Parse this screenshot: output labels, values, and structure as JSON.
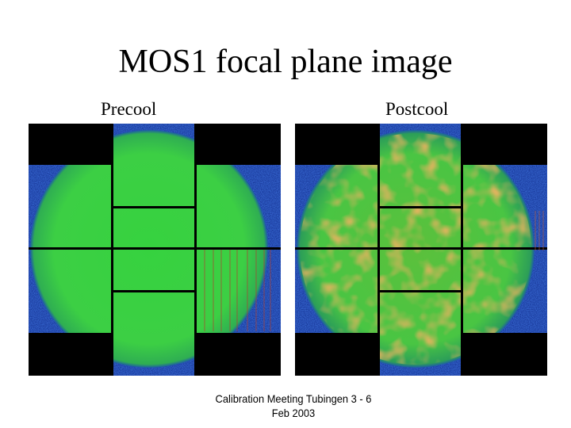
{
  "slide": {
    "title": "MOS1 focal plane image",
    "footer_line1": "Calibration Meeting Tubingen 3 - 6",
    "footer_line2": "Feb 2003"
  },
  "panels": [
    {
      "label": "Precool",
      "image": "mos1-focal-plane-precool",
      "hot_tint": "#4ec43c"
    },
    {
      "label": "Postcool",
      "image": "mos1-focal-plane-postcool",
      "hot_tint": "#c77a2a"
    }
  ],
  "colors": {
    "background": "#ffffff",
    "ccd_noise": "#1a3a9c",
    "illuminated": "#3fcf4a",
    "chip_gap": "#000000"
  }
}
